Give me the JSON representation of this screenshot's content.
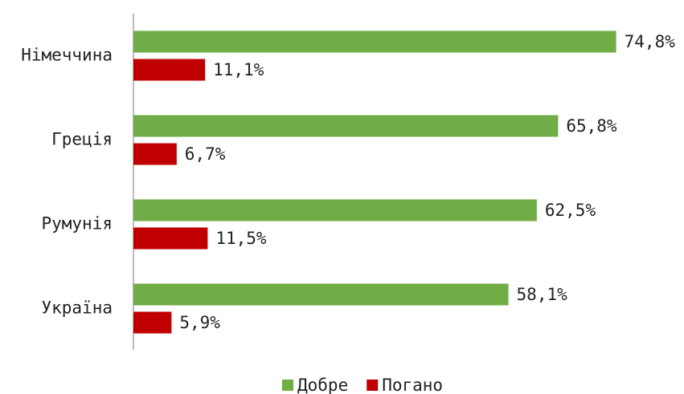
{
  "chart_data": {
    "type": "barh",
    "categories": [
      "Німеччина",
      "Греція",
      "Румунія",
      "Україна"
    ],
    "series": [
      {
        "name": "Добре",
        "color": "#70ad47",
        "values": [
          74.8,
          65.8,
          62.5,
          58.1
        ],
        "value_labels": [
          "74,8%",
          "65,8%",
          "62,5%",
          "58,1%"
        ]
      },
      {
        "name": "Погано",
        "color": "#c00000",
        "values": [
          11.1,
          6.7,
          11.5,
          5.9
        ],
        "value_labels": [
          "11,1%",
          "6,7%",
          "11,5%",
          "5,9%"
        ]
      }
    ],
    "legend": "bottom"
  }
}
